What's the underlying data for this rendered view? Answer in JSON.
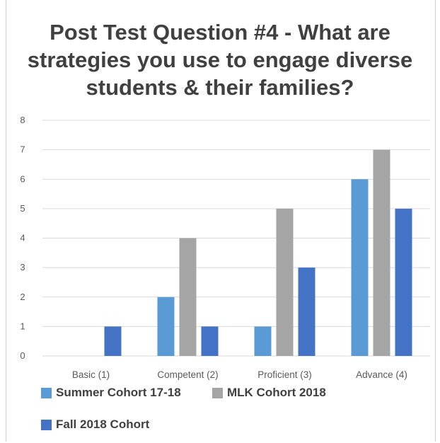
{
  "chart_data": {
    "type": "bar",
    "title_lines": [
      "Post Test Question #4 - What are",
      "strategies you use to engage diverse",
      "students & their families?"
    ],
    "categories": [
      "Basic (1)",
      "Competent (2)",
      "Proficient (3)",
      "Advance (4)"
    ],
    "series": [
      {
        "name": "Summer Cohort 17-18",
        "color": "#5b9bd5",
        "values": [
          0,
          2,
          1,
          6
        ]
      },
      {
        "name": "MLK Cohort 2018",
        "color": "#a5a5a5",
        "values": [
          0,
          4,
          5,
          7
        ]
      },
      {
        "name": "Fall 2018 Cohort",
        "color": "#4472c4",
        "values": [
          1,
          1,
          3,
          5
        ]
      }
    ],
    "ylim": [
      0,
      8
    ],
    "yticks": [
      "0",
      "1",
      "2",
      "3",
      "4",
      "5",
      "6",
      "7",
      "8"
    ],
    "grid": true,
    "legend_position": "bottom"
  }
}
